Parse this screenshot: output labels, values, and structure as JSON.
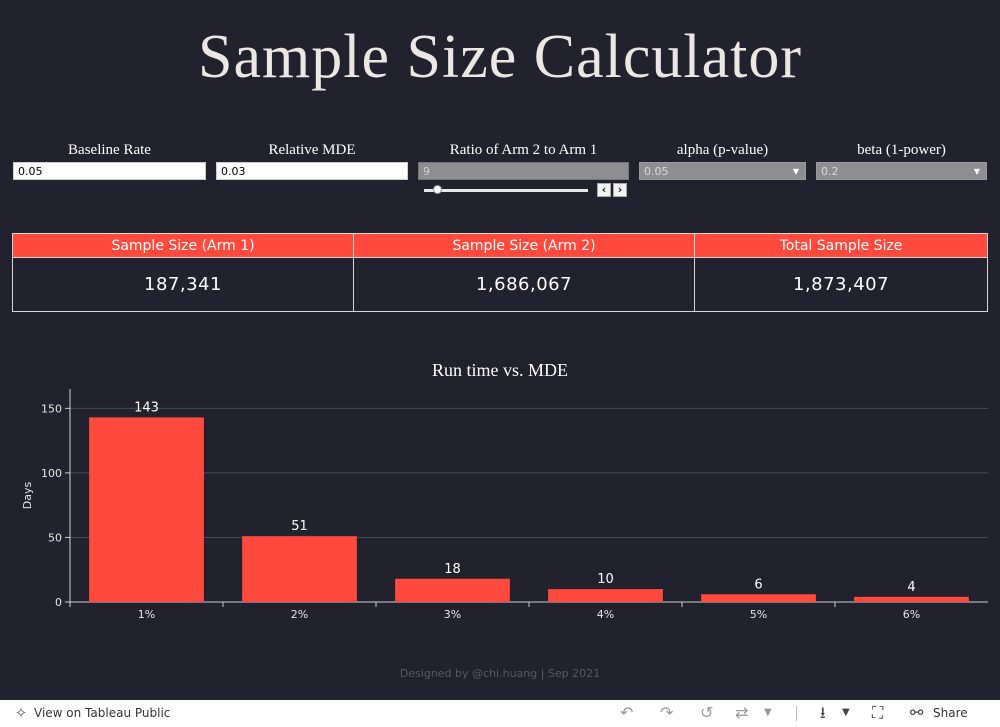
{
  "title": "Sample Size Calculator",
  "params": {
    "baseline": {
      "label": "Baseline Rate",
      "value": "0.05"
    },
    "mde": {
      "label": "Relative MDE",
      "value": "0.03"
    },
    "ratio": {
      "label": "Ratio of Arm 2 to Arm 1",
      "value": "9"
    },
    "alpha": {
      "label": "alpha (p-value)",
      "value": "0.05"
    },
    "beta": {
      "label": "beta (1-power)",
      "value": "0.2"
    }
  },
  "kpi": {
    "headers": [
      "Sample Size (Arm 1)",
      "Sample Size (Arm 2)",
      "Total Sample Size"
    ],
    "values": [
      "187,341",
      "1,686,067",
      "1,873,407"
    ]
  },
  "chart_data": {
    "type": "bar",
    "title": "Run time vs. MDE",
    "categories": [
      "1%",
      "2%",
      "3%",
      "4%",
      "5%",
      "6%"
    ],
    "values": [
      143,
      51,
      18,
      10,
      6,
      4
    ],
    "xlabel": "",
    "ylabel": "Days",
    "yticks": [
      0,
      50,
      100,
      150
    ],
    "ylim": [
      0,
      165
    ],
    "bar_color": "#ff4a3d"
  },
  "credit": "Designed by @chi.huang | Sep 2021",
  "footer": {
    "view_label": "View on Tableau Public",
    "share_label": "Share"
  },
  "colors": {
    "background": "#22222f",
    "accent": "#ff4a3d"
  }
}
